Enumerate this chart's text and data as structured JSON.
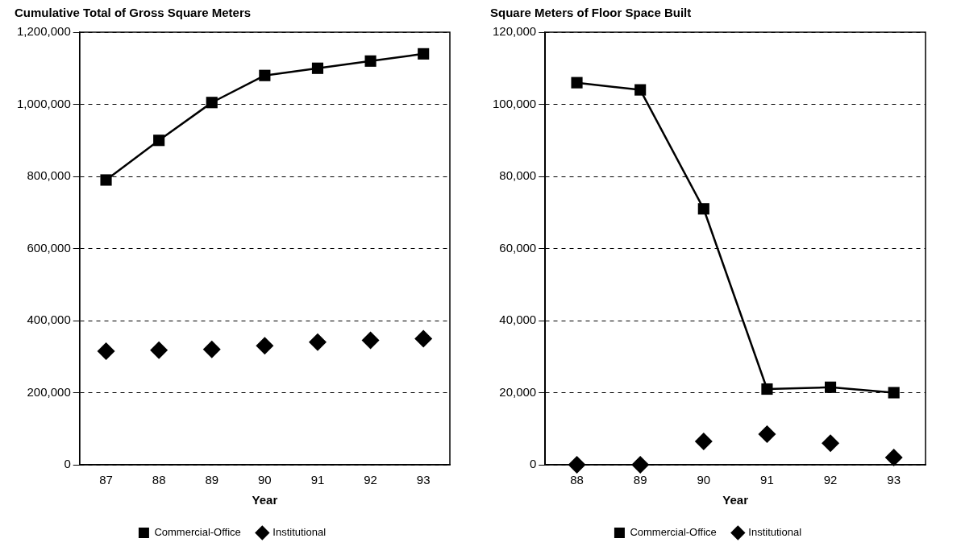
{
  "chart_data": [
    {
      "type": "line",
      "title": "Cumulative Total of Gross Square Meters",
      "xlabel": "Year",
      "categories": [
        "87",
        "88",
        "89",
        "90",
        "91",
        "92",
        "93"
      ],
      "series": [
        {
          "name": "Commercial-Office",
          "color": "#000000",
          "marker": "square",
          "values": [
            790000,
            900000,
            1005000,
            1080000,
            1100000,
            1120000,
            1140000
          ]
        },
        {
          "name": "Institutional",
          "type": "scatter",
          "color": "#000000",
          "marker": "diamond",
          "values": [
            315000,
            318000,
            320000,
            330000,
            340000,
            345000,
            350000
          ]
        }
      ],
      "ylim": [
        0,
        1200000
      ],
      "yticks": [
        0,
        {
          "value": 200000,
          "label": "200,000"
        },
        {
          "value": 400000,
          "label": "400,000"
        },
        {
          "value": 600000,
          "label": "600,000"
        },
        {
          "value": 800000,
          "label": "800,000"
        },
        {
          "value": 1000000,
          "label": "1,000,000"
        },
        {
          "value": 1200000,
          "label": "1,200,000"
        }
      ],
      "grid": "y",
      "legend": "bottom"
    },
    {
      "type": "line",
      "title": "Square Meters of Floor Space Built",
      "xlabel": "Year",
      "categories": [
        "88",
        "89",
        "90",
        "91",
        "92",
        "93"
      ],
      "series": [
        {
          "name": "Commercial-Office",
          "color": "#000000",
          "marker": "square",
          "values": [
            106000,
            104000,
            71000,
            21000,
            21500,
            20000
          ]
        },
        {
          "name": "Institutional",
          "type": "scatter",
          "color": "#000000",
          "marker": "diamond",
          "values": [
            0,
            0,
            6500,
            8500,
            6000,
            2000
          ]
        }
      ],
      "ylim": [
        0,
        120000
      ],
      "yticks": [
        0,
        {
          "value": 20000,
          "label": "20,000"
        },
        {
          "value": 40000,
          "label": "40,000"
        },
        {
          "value": 60000,
          "label": "60,000"
        },
        {
          "value": 80000,
          "label": "80,000"
        },
        {
          "value": 100000,
          "label": "100,000"
        },
        {
          "value": 120000,
          "label": "120,000"
        }
      ],
      "grid": "y",
      "legend": "bottom"
    }
  ]
}
